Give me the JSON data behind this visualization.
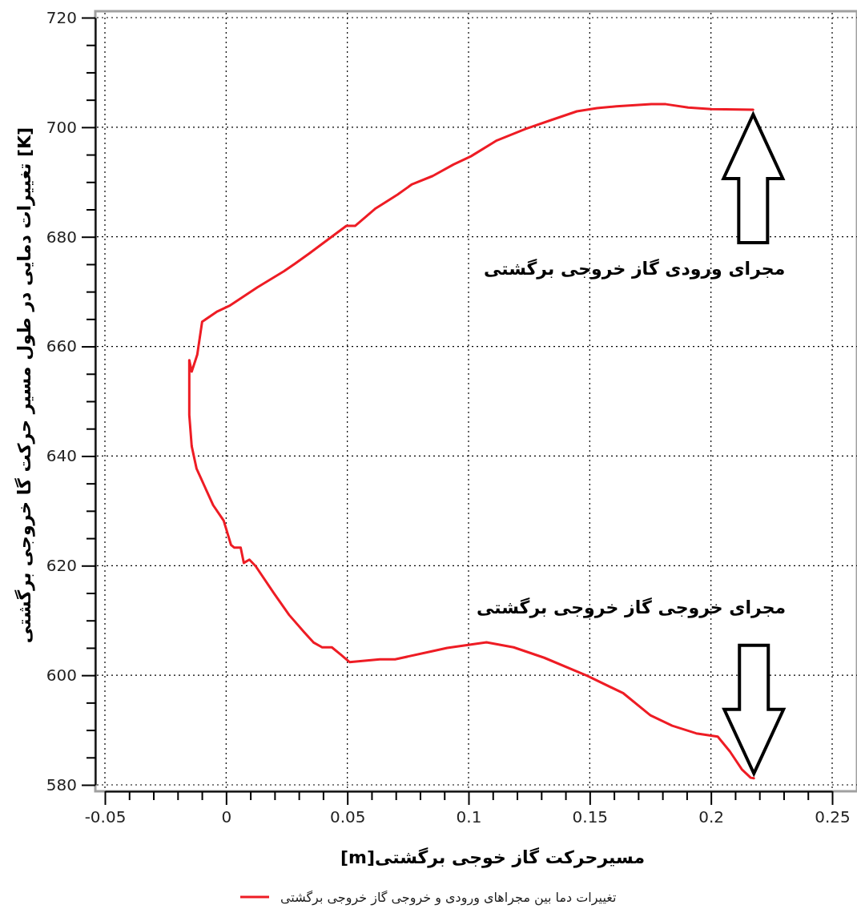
{
  "chart_data": {
    "type": "line",
    "xlabel": "[m]مسیرحرکت گاز خوجی برگشتی",
    "ylabel": "تغییرات دمایی در طول مسیر حرکت گا خروجی برگشتی [K]",
    "xlim": [
      -0.05,
      0.25
    ],
    "xticks": [
      -0.05,
      {
        "value": -0.04,
        "label": null
      },
      {
        "value": -0.03,
        "label": null
      },
      {
        "value": -0.02,
        "label": null
      },
      {
        "value": -0.01,
        "label": null
      },
      0,
      {
        "value": 0.01,
        "label": null
      },
      {
        "value": 0.02,
        "label": null
      },
      {
        "value": 0.03,
        "label": null
      },
      {
        "value": 0.04,
        "label": null
      },
      0.05,
      {
        "value": 0.06,
        "label": null
      },
      {
        "value": 0.07,
        "label": null
      },
      {
        "value": 0.08,
        "label": null
      },
      {
        "value": 0.09,
        "label": null
      },
      0.1,
      {
        "value": 0.11,
        "label": null
      },
      {
        "value": 0.12,
        "label": null
      },
      {
        "value": 0.13,
        "label": null
      },
      {
        "value": 0.14,
        "label": null
      },
      0.15,
      {
        "value": 0.16,
        "label": null
      },
      {
        "value": 0.17,
        "label": null
      },
      {
        "value": 0.18,
        "label": null
      },
      {
        "value": 0.19,
        "label": null
      },
      0.2,
      {
        "value": 0.21,
        "label": null
      },
      {
        "value": 0.22,
        "label": null
      },
      {
        "value": 0.23,
        "label": null
      },
      {
        "value": 0.24,
        "label": null
      },
      0.25
    ],
    "ylim": [
      580,
      720
    ],
    "yticks": [
      580,
      {
        "value": 585,
        "label": null
      },
      {
        "value": 590,
        "label": null
      },
      {
        "value": 595,
        "label": null
      },
      600,
      {
        "value": 605,
        "label": null
      },
      {
        "value": 610,
        "label": null
      },
      {
        "value": 615,
        "label": null
      },
      620,
      {
        "value": 625,
        "label": null
      },
      {
        "value": 630,
        "label": null
      },
      {
        "value": 635,
        "label": null
      },
      640,
      {
        "value": 645,
        "label": null
      },
      {
        "value": 650,
        "label": null
      },
      {
        "value": 655,
        "label": null
      },
      660,
      {
        "value": 665,
        "label": null
      },
      {
        "value": 670,
        "label": null
      },
      {
        "value": 675,
        "label": null
      },
      680,
      {
        "value": 685,
        "label": null
      },
      {
        "value": 690,
        "label": null
      },
      {
        "value": 695,
        "label": null
      },
      700,
      {
        "value": 705,
        "label": null
      },
      {
        "value": 710,
        "label": null
      },
      {
        "value": 715,
        "label": null
      },
      720
    ],
    "grid": true,
    "legend": "bottom",
    "line_style": "solid",
    "series": [
      {
        "name": "تغییرات دما بین مجراهای ورودی و خروجی گاز خروجی برگشتی",
        "color": "#ee1c24",
        "x": [
          0.2174,
          0.2002,
          0.1906,
          0.1814,
          0.1754,
          0.161,
          0.153,
          0.1447,
          0.134,
          0.1236,
          0.1117,
          0.101,
          0.0938,
          0.0852,
          0.0767,
          0.0707,
          0.0614,
          0.0532,
          0.0496,
          0.0426,
          0.0344,
          0.0284,
          0.0238,
          0.0129,
          0.0013,
          -0.0036,
          -0.0099,
          -0.0119,
          -0.0142,
          -0.0152,
          -0.0152,
          -0.0152,
          -0.0142,
          -0.0122,
          -0.0053,
          -0.001,
          0.002,
          0.0033,
          0.006,
          0.0073,
          0.0096,
          0.0122,
          0.0198,
          0.026,
          0.0323,
          0.036,
          0.0396,
          0.0436,
          0.0472,
          0.0509,
          0.0634,
          0.0697,
          0.0852,
          0.0912,
          0.1074,
          0.1186,
          0.1312,
          0.149,
          0.1639,
          0.175,
          0.184,
          0.1939,
          0.2028,
          0.2078,
          0.2128,
          0.2164,
          0.2177
        ],
        "values": [
          703.2,
          703.3,
          703.6,
          704.2,
          704.2,
          703.8,
          703.5,
          702.9,
          701.3,
          699.7,
          697.6,
          694.7,
          693.2,
          691.1,
          689.6,
          687.7,
          685.1,
          682.0,
          682.0,
          679.7,
          677.0,
          675.1,
          673.7,
          670.8,
          667.4,
          666.4,
          664.5,
          658.5,
          655.4,
          657.5,
          653.8,
          647.5,
          641.8,
          637.7,
          631.0,
          628.2,
          623.8,
          623.3,
          623.3,
          620.5,
          621.1,
          619.9,
          614.9,
          611.0,
          607.8,
          606.0,
          605.1,
          605.1,
          603.8,
          602.4,
          602.9,
          602.9,
          604.4,
          605.0,
          606.0,
          605.1,
          603.2,
          599.9,
          596.7,
          592.7,
          590.8,
          589.4,
          588.8,
          586.1,
          582.8,
          581.3,
          581.2
        ]
      }
    ],
    "annotations": [
      "مجرای ورودی گاز خروجی برگشتی",
      "مجرای خروجی گاز خروجی برگشتی"
    ]
  }
}
